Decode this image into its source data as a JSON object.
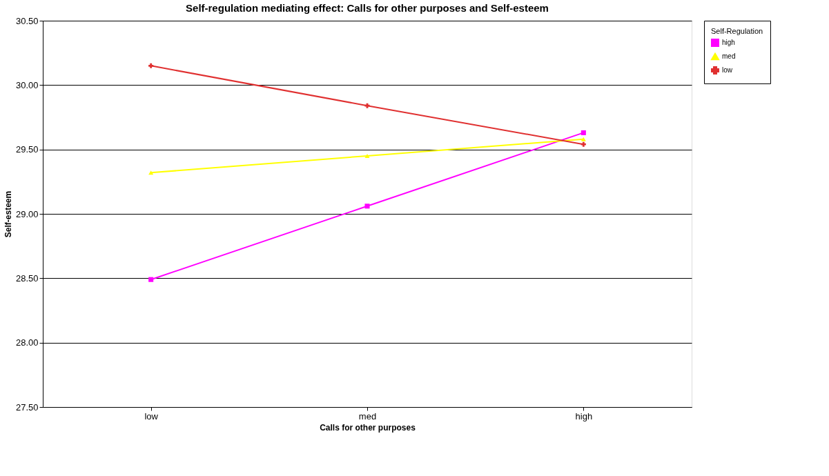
{
  "chart_data": {
    "type": "line",
    "title": "Self-regulation mediating effect: Calls for other purposes and Self-esteem",
    "xlabel": "Calls for other purposes",
    "ylabel": "Self-esteem",
    "legend_title": "Self-Regulation",
    "categories": [
      "low",
      "med",
      "high"
    ],
    "series": [
      {
        "name": "high",
        "color": "#ff00ff",
        "values": [
          28.49,
          29.06,
          29.63
        ],
        "marker": "square"
      },
      {
        "name": "med",
        "color": "#ffff00",
        "values": [
          29.32,
          29.45,
          29.58
        ],
        "marker": "triangle"
      },
      {
        "name": "low",
        "color": "#e03030",
        "values": [
          30.15,
          29.84,
          29.54
        ],
        "marker": "cross"
      }
    ],
    "ylim": [
      27.5,
      30.5
    ],
    "yticks": [
      {
        "value": 27.5,
        "label": "27.50"
      },
      {
        "value": 28.0,
        "label": "28.00"
      },
      {
        "value": 28.5,
        "label": "28.50"
      },
      {
        "value": 29.0,
        "label": "29.00"
      },
      {
        "value": 29.5,
        "label": "29.50"
      },
      {
        "value": 30.0,
        "label": "30.00"
      },
      {
        "value": 30.5,
        "label": "30.50"
      }
    ],
    "grid": "y",
    "legend": "right"
  }
}
